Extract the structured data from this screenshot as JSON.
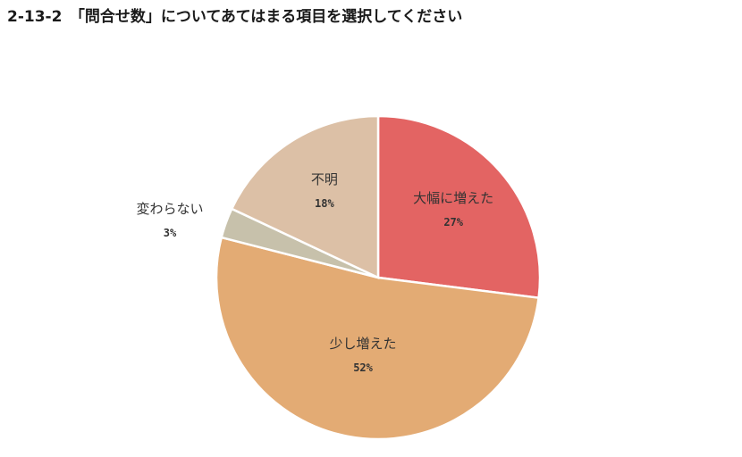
{
  "title": "2-13-2　「問合せ数」についてあてはまる項目を選択してください",
  "chart_data": {
    "type": "pie",
    "start_angle_deg": 0,
    "direction": "clockwise",
    "slices": [
      {
        "name": "大幅に増えた",
        "value": 27,
        "pct_label": "27%",
        "color": "#e36463"
      },
      {
        "name": "少し増えた",
        "value": 52,
        "pct_label": "52%",
        "color": "#e3ab74"
      },
      {
        "name": "変わらない",
        "value": 3,
        "pct_label": "3%",
        "color": "#c7c1ab"
      },
      {
        "name": "不明",
        "value": 18,
        "pct_label": "18%",
        "color": "#dcc0a6"
      }
    ]
  }
}
